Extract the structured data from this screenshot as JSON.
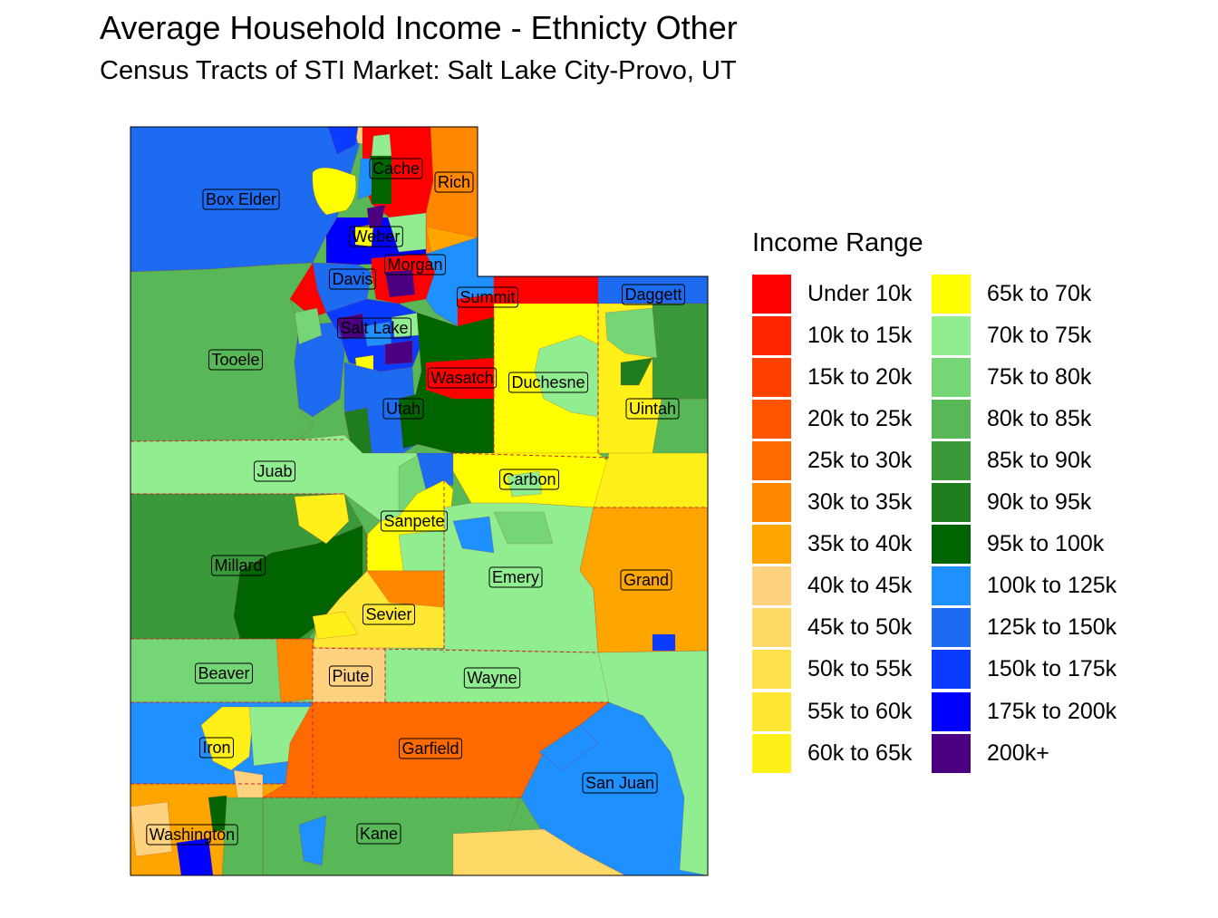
{
  "title": "Average Household Income - Ethnicty Other",
  "subtitle": "Census Tracts of STI Market: Salt Lake City-Provo, UT",
  "legend": {
    "title": "Income Range",
    "items": [
      {
        "label": "Under 10k",
        "color": "#FF0000"
      },
      {
        "label": "10k to 15k",
        "color": "#FF2600"
      },
      {
        "label": "15k to 20k",
        "color": "#FF4000"
      },
      {
        "label": "20k to 25k",
        "color": "#FF5500"
      },
      {
        "label": "25k to 30k",
        "color": "#FF6A00"
      },
      {
        "label": "30k to 35k",
        "color": "#FF8800"
      },
      {
        "label": "35k to 40k",
        "color": "#FFA500"
      },
      {
        "label": "40k to 45k",
        "color": "#FFD27F"
      },
      {
        "label": "45k to 50k",
        "color": "#FFD966"
      },
      {
        "label": "50k to 55k",
        "color": "#FFE14D"
      },
      {
        "label": "55k to 60k",
        "color": "#FFE833"
      },
      {
        "label": "60k to 65k",
        "color": "#FFF01A"
      },
      {
        "label": "65k to 70k",
        "color": "#FFFF00"
      },
      {
        "label": "70k to 75k",
        "color": "#90EE90"
      },
      {
        "label": "75k to 80k",
        "color": "#75D675"
      },
      {
        "label": "80k to 85k",
        "color": "#58B858"
      },
      {
        "label": "85k to 90k",
        "color": "#3A9A3A"
      },
      {
        "label": "90k to 95k",
        "color": "#1E7E1E"
      },
      {
        "label": "95k to 100k",
        "color": "#006400"
      },
      {
        "label": "100k to 125k",
        "color": "#1E90FF"
      },
      {
        "label": "125k to 150k",
        "color": "#1C6BF0"
      },
      {
        "label": "150k to 175k",
        "color": "#0A3CFF"
      },
      {
        "label": "175k to 200k",
        "color": "#0000FF"
      },
      {
        "label": "200k+",
        "color": "#4B0082"
      }
    ]
  },
  "counties": [
    {
      "name": "Box Elder",
      "income_range": "125k to 150k"
    },
    {
      "name": "Cache",
      "income_range": "Under 10k"
    },
    {
      "name": "Rich",
      "income_range": "30k to 35k"
    },
    {
      "name": "Weber",
      "income_range": "175k to 200k"
    },
    {
      "name": "Morgan",
      "income_range": "Under 10k"
    },
    {
      "name": "Davis",
      "income_range": "125k to 150k"
    },
    {
      "name": "Summit",
      "income_range": "100k to 125k"
    },
    {
      "name": "Daggett",
      "income_range": "125k to 150k"
    },
    {
      "name": "Salt Lake",
      "income_range": "150k to 175k"
    },
    {
      "name": "Tooele",
      "income_range": "80k to 85k"
    },
    {
      "name": "Wasatch",
      "income_range": "95k to 100k"
    },
    {
      "name": "Duchesne",
      "income_range": "65k to 70k"
    },
    {
      "name": "Uintah",
      "income_range": "60k to 65k"
    },
    {
      "name": "Utah",
      "income_range": "95k to 100k"
    },
    {
      "name": "Juab",
      "income_range": "70k to 75k"
    },
    {
      "name": "Carbon",
      "income_range": "60k to 65k"
    },
    {
      "name": "Sanpete",
      "income_range": "60k to 65k"
    },
    {
      "name": "Millard",
      "income_range": "85k to 90k"
    },
    {
      "name": "Emery",
      "income_range": "70k to 75k"
    },
    {
      "name": "Grand",
      "income_range": "30k to 35k"
    },
    {
      "name": "Sevier",
      "income_range": "60k to 65k"
    },
    {
      "name": "Beaver",
      "income_range": "75k to 80k"
    },
    {
      "name": "Piute",
      "income_range": "40k to 45k"
    },
    {
      "name": "Wayne",
      "income_range": "70k to 75k"
    },
    {
      "name": "Iron",
      "income_range": "100k to 125k"
    },
    {
      "name": "Garfield",
      "income_range": "25k to 30k"
    },
    {
      "name": "San Juan",
      "income_range": "100k to 125k"
    },
    {
      "name": "Washington",
      "income_range": "35k to 40k"
    },
    {
      "name": "Kane",
      "income_range": "80k to 85k"
    }
  ]
}
